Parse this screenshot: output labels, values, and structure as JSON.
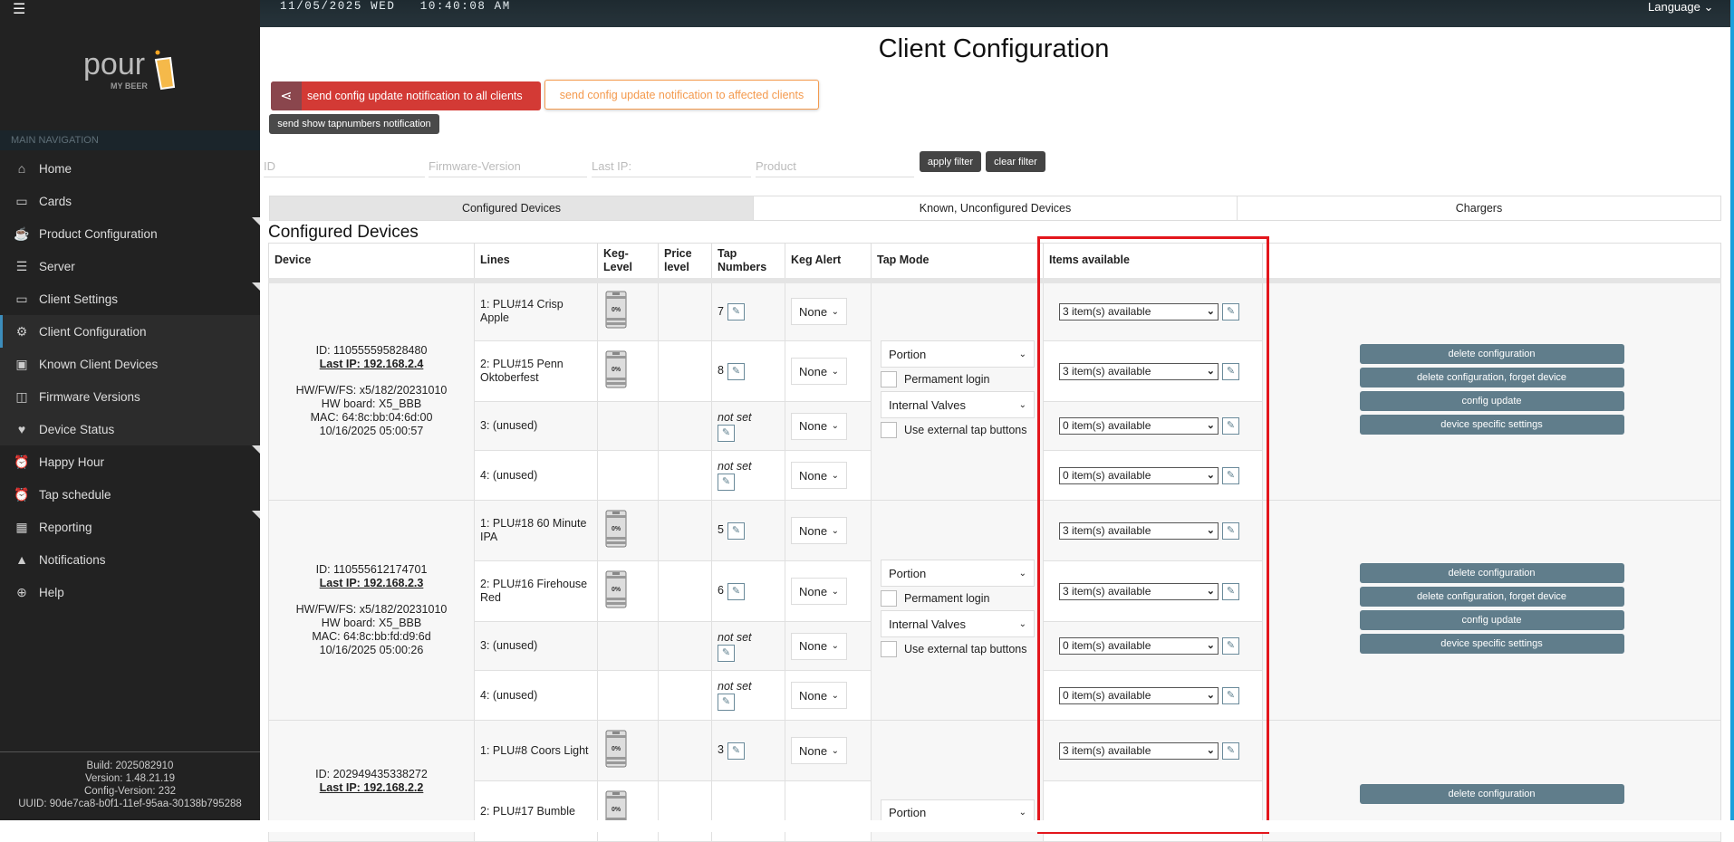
{
  "header": {
    "datetime": "11/05/2025 WED   10:40:08 AM",
    "language": "Language ⌄",
    "menu_icon": "hamburger-icon"
  },
  "logo": {
    "text": "pour",
    "sub": "MY BEER"
  },
  "sidebar": {
    "section": "MAIN NAVIGATION",
    "items": [
      {
        "label": "Home",
        "icon": "⌂",
        "name": "home"
      },
      {
        "label": "Cards",
        "icon": "▭",
        "name": "cards"
      },
      {
        "label": "Product Configuration",
        "icon": "☕",
        "name": "product-configuration",
        "tri": true
      },
      {
        "label": "Server",
        "icon": "☰",
        "name": "server"
      },
      {
        "label": "Client Settings",
        "icon": "▭",
        "name": "client-settings",
        "tri": true
      },
      {
        "label": "Client Configuration",
        "icon": "⚙",
        "name": "client-configuration",
        "active": true
      },
      {
        "label": "Known Client Devices",
        "icon": "▣",
        "name": "known-client-devices"
      },
      {
        "label": "Firmware Versions",
        "icon": "◫",
        "name": "firmware-versions"
      },
      {
        "label": "Device Status",
        "icon": "♥",
        "name": "device-status"
      },
      {
        "label": "Happy Hour",
        "icon": "⏰",
        "name": "happy-hour",
        "tri": true
      },
      {
        "label": "Tap schedule",
        "icon": "⏰",
        "name": "tap-schedule"
      },
      {
        "label": "Reporting",
        "icon": "▦",
        "name": "reporting",
        "tri": true
      },
      {
        "label": "Notifications",
        "icon": "▲",
        "name": "notifications"
      },
      {
        "label": "Help",
        "icon": "⊕",
        "name": "help"
      }
    ],
    "footer": {
      "build": "Build: 2025082910",
      "version": "Version: 1.48.21.19",
      "config": "Config-Version: 232",
      "uuid": "UUID: 90de7ca8-b0f1-11ef-95aa-30138b795288"
    }
  },
  "page": {
    "title": "Client Configuration",
    "btn_all": "send config update notification to all clients",
    "btn_affected": "send config update notification to affected clients",
    "btn_tapnumbers": "send show tapnumbers notification",
    "filters": {
      "id": "ID",
      "firmware": "Firmware-Version",
      "ip": "Last IP:",
      "product": "Product",
      "apply": "apply filter",
      "clear": "clear filter"
    },
    "tabs": [
      "Configured Devices",
      "Known, Unconfigured Devices",
      "Chargers"
    ],
    "section": "Configured Devices"
  },
  "table": {
    "headers": [
      "Device",
      "Lines",
      "Keg-Level",
      "Price level",
      "Tap Numbers",
      "Keg Alert",
      "Tap Mode",
      "Items available",
      ""
    ],
    "not_set": "not set",
    "keg_level": "0%",
    "mode": {
      "portion": "Portion",
      "perm": "Permament login",
      "valves": "Internal Valves",
      "ext": "Use external tap buttons"
    },
    "actions": [
      "delete configuration",
      "delete configuration, forget device",
      "config update",
      "device specific settings"
    ],
    "devices": [
      {
        "id": "ID: 110555595828480",
        "ip": "Last IP: 192.168.2.4",
        "hw": "HW/FW/FS: x5/182/20231010",
        "board": "HW board: X5_BBB",
        "mac": "MAC: 64:8c:bb:04:6d:00",
        "date": "10/16/2025 05:00:57",
        "lines": [
          {
            "name": "1: PLU#14 Crisp Apple",
            "keg": true,
            "tap": "7",
            "alert": "None",
            "items": "3 item(s) available"
          },
          {
            "name": "2: PLU#15 Penn Oktoberfest",
            "keg": true,
            "tap": "8",
            "alert": "None",
            "items": "3 item(s) available"
          },
          {
            "name": "3: (unused)",
            "keg": false,
            "tap": "",
            "alert": "None",
            "items": "0 item(s) available"
          },
          {
            "name": "4: (unused)",
            "keg": false,
            "tap": "",
            "alert": "None",
            "items": "0 item(s) available"
          }
        ]
      },
      {
        "id": "ID: 110555612174701",
        "ip": "Last IP: 192.168.2.3",
        "hw": "HW/FW/FS: x5/182/20231010",
        "board": "HW board: X5_BBB",
        "mac": "MAC: 64:8c:bb:fd:d9:6d",
        "date": "10/16/2025 05:00:26",
        "lines": [
          {
            "name": "1: PLU#18 60 Minute IPA",
            "keg": true,
            "tap": "5",
            "alert": "None",
            "items": "3 item(s) available"
          },
          {
            "name": "2: PLU#16 Firehouse Red",
            "keg": true,
            "tap": "6",
            "alert": "None",
            "items": "3 item(s) available"
          },
          {
            "name": "3: (unused)",
            "keg": false,
            "tap": "",
            "alert": "None",
            "items": "0 item(s) available"
          },
          {
            "name": "4: (unused)",
            "keg": false,
            "tap": "",
            "alert": "None",
            "items": "0 item(s) available"
          }
        ]
      },
      {
        "id": "ID: 202949435338272",
        "ip": "Last IP: 192.168.2.2",
        "hw": "",
        "board": "",
        "mac": "",
        "date": "",
        "lines": [
          {
            "name": "1: PLU#8 Coors Light",
            "keg": true,
            "tap": "3",
            "alert": "None",
            "items": "3 item(s) available"
          },
          {
            "name": "2: PLU#17 Bumble",
            "keg": true,
            "tap": "",
            "alert": "",
            "items": ""
          }
        ]
      }
    ]
  },
  "colors": {
    "accent_red": "#d33a35",
    "accent_orange": "#f49a4e",
    "action": "#607d8b",
    "highlight": "#e3161c"
  }
}
